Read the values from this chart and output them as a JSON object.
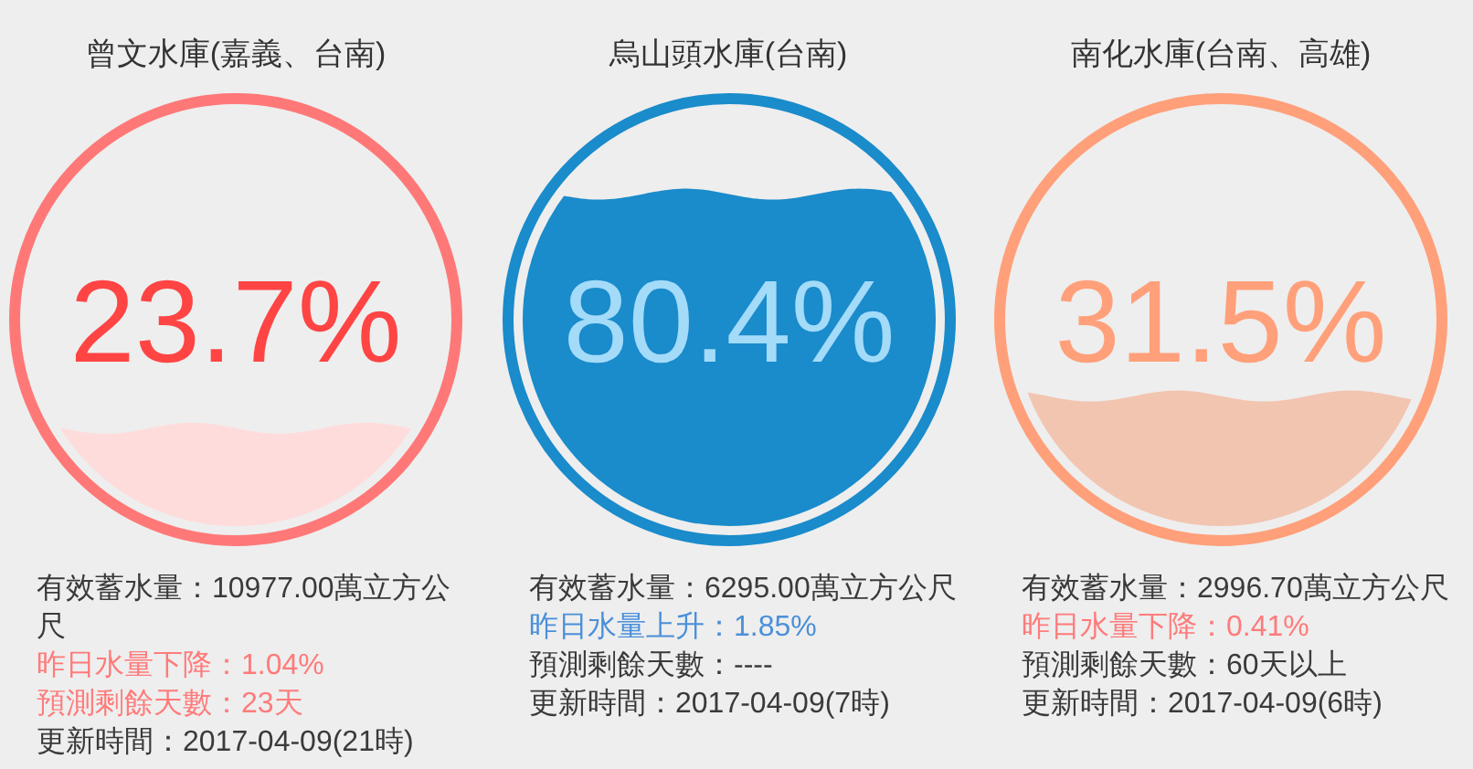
{
  "chart_data": [
    {
      "type": "other",
      "title": "曾文水庫(嘉義、台南)",
      "values": [
        23.7
      ],
      "value_labels": [
        "23.7%"
      ],
      "color": "#ffdcdc",
      "annotations": [
        "有效蓄水量：10977.00萬立方公尺",
        "昨日水量下降：1.04%",
        "預測剩餘天數：23天",
        "更新時間：2017-04-09(21時)"
      ]
    },
    {
      "type": "other",
      "title": "烏山頭水庫(台南)",
      "values": [
        80.4
      ],
      "value_labels": [
        "80.4%"
      ],
      "color": "#1a8bcb",
      "annotations": [
        "有效蓄水量：6295.00萬立方公尺",
        "昨日水量上升：1.85%",
        "預測剩餘天數：----",
        "更新時間：2017-04-09(7時)"
      ]
    },
    {
      "type": "other",
      "title": "南化水庫(台南、高雄)",
      "values": [
        31.5
      ],
      "value_labels": [
        "31.5%"
      ],
      "color": "#f2c5b1",
      "annotations": [
        "有效蓄水量：2996.70萬立方公尺",
        "昨日水量下降：0.41%",
        "預測剩餘天數：60天以上",
        "更新時間：2017-04-09(6時)"
      ]
    }
  ]
}
